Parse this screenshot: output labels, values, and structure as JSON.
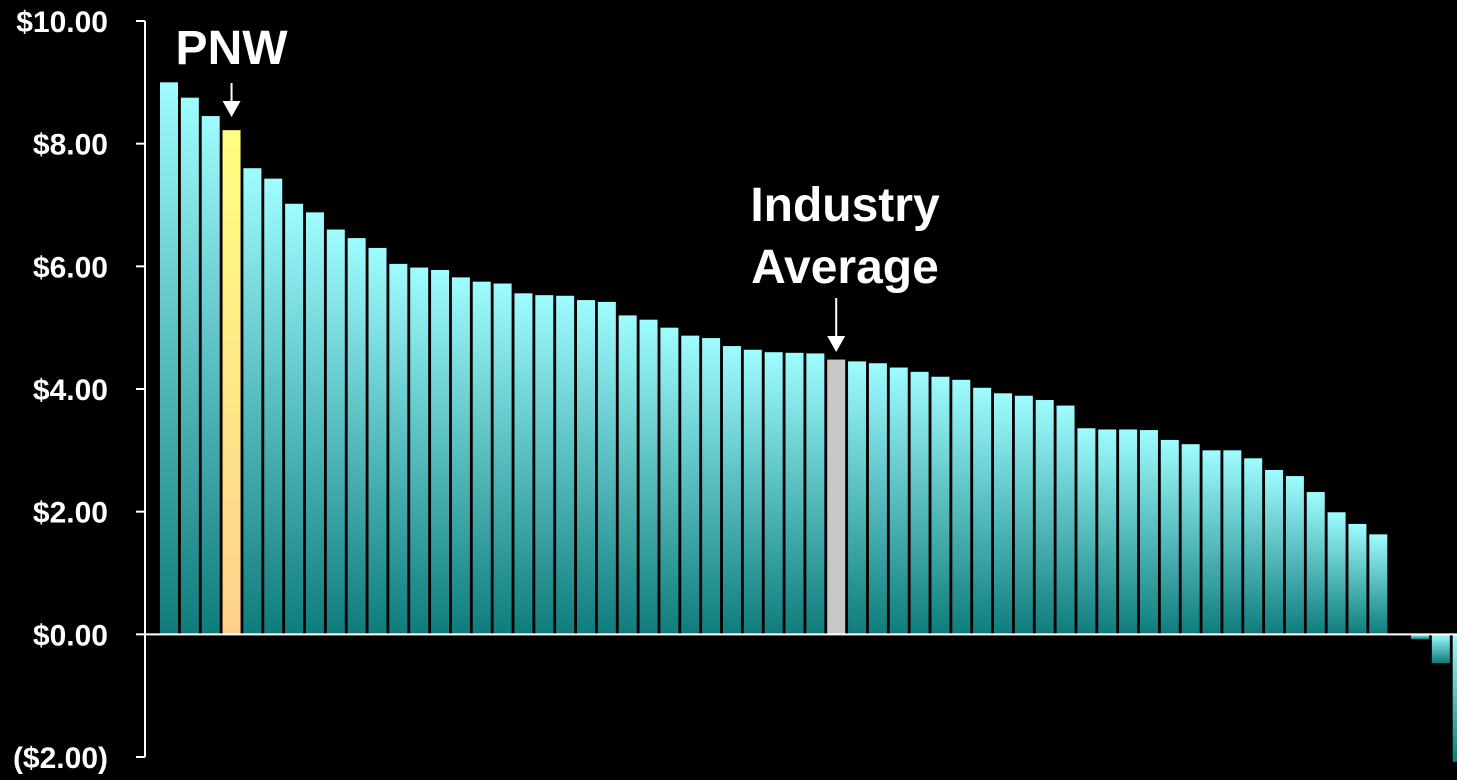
{
  "chart_data": {
    "type": "bar",
    "ylim": [
      -2,
      10
    ],
    "y_ticks": [
      10,
      8,
      6,
      4,
      2,
      0,
      -2
    ],
    "y_tick_labels": [
      "$10.00",
      "$8.00",
      "$6.00",
      "$4.00",
      "$2.00",
      "$0.00",
      "($2.00)"
    ],
    "grid": false,
    "values": [
      9.0,
      8.75,
      8.45,
      8.22,
      7.6,
      7.43,
      7.02,
      6.88,
      6.6,
      6.46,
      6.3,
      6.04,
      5.98,
      5.94,
      5.82,
      5.75,
      5.72,
      5.56,
      5.53,
      5.52,
      5.45,
      5.42,
      5.2,
      5.13,
      5.0,
      4.87,
      4.83,
      4.7,
      4.64,
      4.6,
      4.59,
      4.58,
      4.48,
      4.45,
      4.42,
      4.35,
      4.28,
      4.2,
      4.15,
      4.02,
      3.93,
      3.89,
      3.82,
      3.73,
      3.36,
      3.34,
      3.34,
      3.33,
      3.17,
      3.1,
      3.0,
      3.0,
      2.87,
      2.68,
      2.58,
      2.32,
      1.99,
      1.8,
      1.63,
      null,
      -0.08,
      -0.47,
      -2.08
    ],
    "highlights": [
      {
        "index": 3,
        "label": "PNW",
        "color": "#ffd98c"
      },
      {
        "index": 32,
        "label": "Industry Average",
        "color": "#c8c8c8"
      }
    ],
    "annotations": [
      {
        "text_lines": [
          "PNW"
        ],
        "target_index": 3
      },
      {
        "text_lines": [
          "Industry",
          "Average"
        ],
        "target_index": 32
      }
    ],
    "colors": {
      "background": "#000000",
      "bar_top": "#9ffcff",
      "bar_bottom": "#0f7c7c",
      "highlight_top": "#ffff80",
      "highlight_bottom": "#ffd08c",
      "average_bar": "#c8c8c8",
      "axis": "#ffffff",
      "text": "#ffffff"
    }
  }
}
